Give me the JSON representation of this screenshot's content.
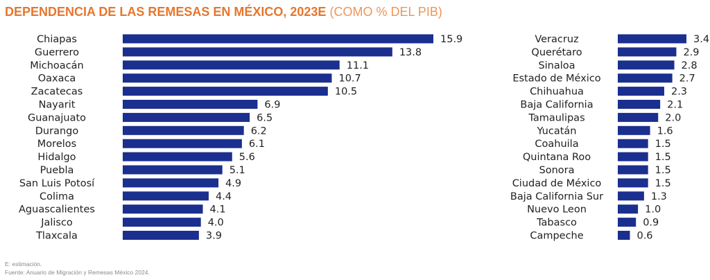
{
  "title_bold": "DEPENDENCIA DE LAS REMESAS EN MÉXICO, 2023E",
  "title_light": "(COMO % DEL PIB)",
  "bar_color": "#1B2F8F",
  "title_color": "#E6762D",
  "footnotes": {
    "estimate": "E: estimación.",
    "source": "Fuente: Anuario de Migración y Remesas México 2024."
  },
  "chart_data": [
    {
      "type": "bar",
      "orientation": "horizontal",
      "categories": [
        "Chiapas",
        "Guerrero",
        "Michoacán",
        "Oaxaca",
        "Zacatecas",
        "Nayarit",
        "Guanajuato",
        "Durango",
        "Morelos",
        "Hidalgo",
        "Puebla",
        "San Luis Potosí",
        "Colima",
        "Aguascalientes",
        "Jalisco",
        "Tlaxcala"
      ],
      "values": [
        15.9,
        13.8,
        11.1,
        10.7,
        10.5,
        6.9,
        6.5,
        6.2,
        6.1,
        5.6,
        5.1,
        4.9,
        4.4,
        4.1,
        4.0,
        3.9
      ],
      "value_labels": [
        "15.9",
        "13.8",
        "11.1",
        "10.7",
        "10.5",
        "6.9",
        "6.5",
        "6.2",
        "6.1",
        "5.6",
        "5.1",
        "4.9",
        "4.4",
        "4.1",
        "4.0",
        "3.9"
      ]
    },
    {
      "type": "bar",
      "orientation": "horizontal",
      "categories": [
        "Veracruz",
        "Querétaro",
        "Sinaloa",
        "Estado de México",
        "Chihuahua",
        "Baja California",
        "Tamaulipas",
        "Yucatán",
        "Coahuila",
        "Quintana Roo",
        "Sonora",
        "Ciudad de México",
        "Baja California Sur",
        "Nuevo Leon",
        "Tabasco",
        "Campeche"
      ],
      "values": [
        3.4,
        2.9,
        2.8,
        2.7,
        2.3,
        2.1,
        2.0,
        1.6,
        1.5,
        1.5,
        1.5,
        1.5,
        1.3,
        1.0,
        0.9,
        0.6
      ],
      "value_labels": [
        "3.4",
        "2.9",
        "2.8",
        "2.7",
        "2.3",
        "2.1",
        "2.0",
        "1.6",
        "1.5",
        "1.5",
        "1.5",
        "1.5",
        "1.3",
        "1.0",
        "0.9",
        "0.6"
      ]
    }
  ]
}
